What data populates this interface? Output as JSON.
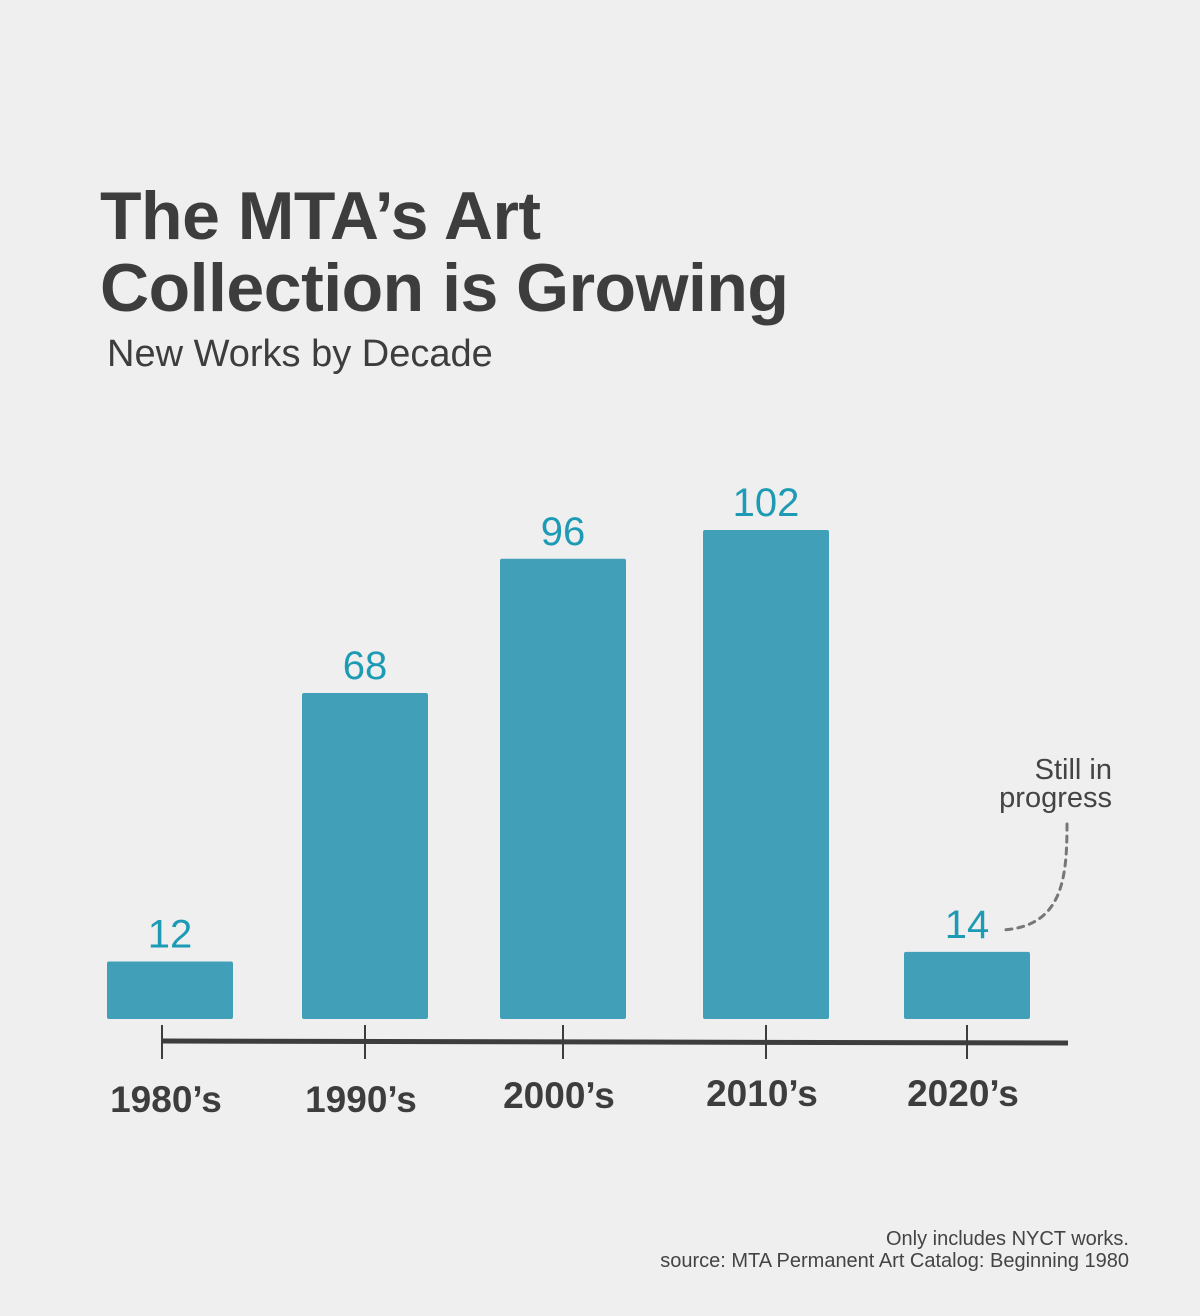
{
  "chart_data": {
    "type": "bar",
    "title": "The MTA’s Art Collection is Growing",
    "title_lines": [
      "The MTA’s Art",
      "Collection is Growing"
    ],
    "subtitle": "New Works by Decade",
    "categories": [
      "1980’s",
      "1990’s",
      "2000’s",
      "2010’s",
      "2020’s"
    ],
    "values": [
      12,
      68,
      96,
      102,
      14
    ],
    "xlabel": "",
    "ylabel": "",
    "ylim": [
      0,
      102
    ],
    "grid": false,
    "legend": "none",
    "annotation": {
      "target": "2020’s",
      "lines": [
        "Still in",
        "progress"
      ]
    },
    "footnote_lines": [
      "Only includes NYCT works.",
      "source: MTA Permanent Art Catalog: Beginning 1980"
    ]
  },
  "colors": {
    "bar": "#41a0b7",
    "value_label": "#1e9bb4",
    "axis": "#3d3d3d",
    "text": "#3d3d3d",
    "leader": "#777777"
  }
}
